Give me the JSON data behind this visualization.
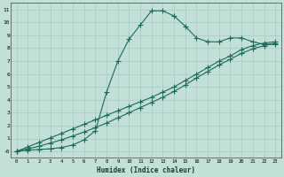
{
  "xlabel": "Humidex (Indice chaleur)",
  "ylabel": "",
  "bg_color": "#c2e0d8",
  "line_color": "#1a6b5a",
  "grid_color": "#a8c8c0",
  "xlim": [
    -0.5,
    23.5
  ],
  "ylim": [
    -0.5,
    11.5
  ],
  "xticks": [
    0,
    1,
    2,
    3,
    4,
    5,
    6,
    7,
    8,
    9,
    10,
    11,
    12,
    13,
    14,
    15,
    16,
    17,
    18,
    19,
    20,
    21,
    22,
    23
  ],
  "yticks": [
    0,
    1,
    2,
    3,
    4,
    5,
    6,
    7,
    8,
    9,
    10,
    11
  ],
  "ytick_labels": [
    "-0",
    "1",
    "2",
    "3",
    "4",
    "5",
    "6",
    "7",
    "8",
    "9",
    "10",
    "11"
  ],
  "line1_x": [
    0,
    1,
    2,
    3,
    4,
    5,
    6,
    7,
    8,
    9,
    10,
    11,
    12,
    13,
    14,
    15,
    16,
    17,
    18,
    19,
    20,
    21,
    22,
    23
  ],
  "line1_y": [
    0.0,
    0.35,
    0.7,
    1.05,
    1.4,
    1.75,
    2.1,
    2.45,
    2.8,
    3.15,
    3.5,
    3.85,
    4.2,
    4.6,
    5.0,
    5.5,
    6.0,
    6.5,
    7.0,
    7.4,
    7.9,
    8.2,
    8.4,
    8.5
  ],
  "line2_x": [
    0,
    1,
    2,
    3,
    4,
    5,
    6,
    7,
    8,
    9,
    10,
    11,
    12,
    13,
    14,
    15,
    16,
    17,
    18,
    19,
    20,
    21,
    22,
    23
  ],
  "line2_y": [
    0.0,
    0.2,
    0.4,
    0.65,
    0.9,
    1.2,
    1.5,
    1.85,
    2.2,
    2.6,
    3.0,
    3.4,
    3.8,
    4.2,
    4.65,
    5.15,
    5.7,
    6.2,
    6.7,
    7.15,
    7.6,
    7.95,
    8.2,
    8.4
  ],
  "line3_x": [
    0,
    1,
    2,
    3,
    4,
    5,
    6,
    7,
    8,
    9,
    10,
    11,
    12,
    13,
    14,
    15,
    16,
    17,
    18,
    19,
    20,
    21,
    22,
    23
  ],
  "line3_y": [
    0.0,
    0.1,
    0.15,
    0.2,
    0.3,
    0.5,
    0.9,
    1.6,
    4.6,
    7.0,
    8.7,
    9.8,
    10.9,
    10.9,
    10.5,
    9.7,
    8.8,
    8.5,
    8.5,
    8.8,
    8.8,
    8.5,
    8.3,
    8.3
  ]
}
